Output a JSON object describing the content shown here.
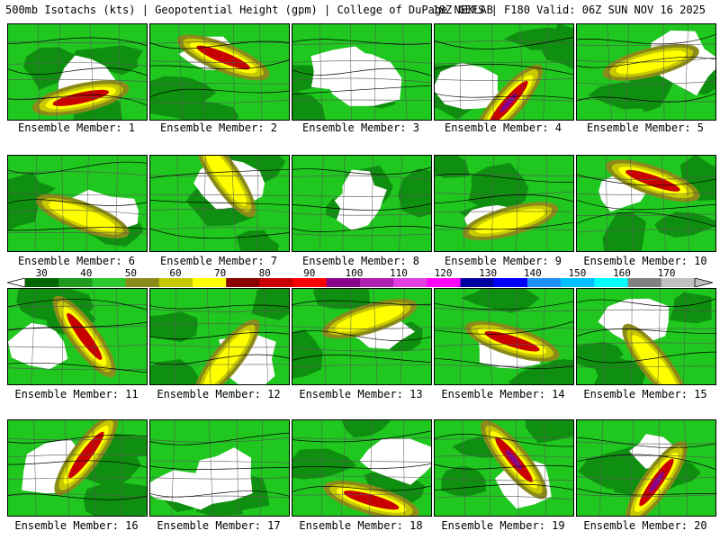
{
  "header": {
    "left": "500mb Isotachs (kts) | Geopotential Height (gpm) | College of DuPage NEXLAB",
    "right": "18Z GEFS | F180 Valid: 06Z SUN NOV 16 2025"
  },
  "members": [
    {
      "label": "Ensemble Member: 1",
      "jet": "high"
    },
    {
      "label": "Ensemble Member: 2",
      "jet": "high"
    },
    {
      "label": "Ensemble Member: 3",
      "jet": "low"
    },
    {
      "label": "Ensemble Member: 4",
      "jet": "max"
    },
    {
      "label": "Ensemble Member: 5",
      "jet": "mid"
    },
    {
      "label": "Ensemble Member: 6",
      "jet": "mid"
    },
    {
      "label": "Ensemble Member: 7",
      "jet": "mid"
    },
    {
      "label": "Ensemble Member: 8",
      "jet": "low"
    },
    {
      "label": "Ensemble Member: 9",
      "jet": "mid"
    },
    {
      "label": "Ensemble Member: 10",
      "jet": "high"
    },
    {
      "label": "Ensemble Member: 11",
      "jet": "high"
    },
    {
      "label": "Ensemble Member: 12",
      "jet": "mid"
    },
    {
      "label": "Ensemble Member: 13",
      "jet": "mid"
    },
    {
      "label": "Ensemble Member: 14",
      "jet": "high"
    },
    {
      "label": "Ensemble Member: 15",
      "jet": "mid"
    },
    {
      "label": "Ensemble Member: 16",
      "jet": "high"
    },
    {
      "label": "Ensemble Member: 17",
      "jet": "low"
    },
    {
      "label": "Ensemble Member: 18",
      "jet": "high"
    },
    {
      "label": "Ensemble Member: 19",
      "jet": "max"
    },
    {
      "label": "Ensemble Member: 20",
      "jet": "max"
    }
  ],
  "colorbar": {
    "labels": [
      "30",
      "40",
      "50",
      "60",
      "70",
      "80",
      "90",
      "100",
      "110",
      "120",
      "130",
      "140",
      "150",
      "160",
      "170"
    ],
    "colors": [
      "#006400",
      "#1e9b1e",
      "#2dc82d",
      "#8b8b1a",
      "#c8c800",
      "#ffff00",
      "#8b0000",
      "#c80000",
      "#ff0000",
      "#8b008b",
      "#b020b0",
      "#e040e0",
      "#ff00ff",
      "#0000a0",
      "#0000ff",
      "#1e90ff",
      "#00bfff",
      "#00ffff",
      "#808080",
      "#c0c0c0"
    ]
  }
}
